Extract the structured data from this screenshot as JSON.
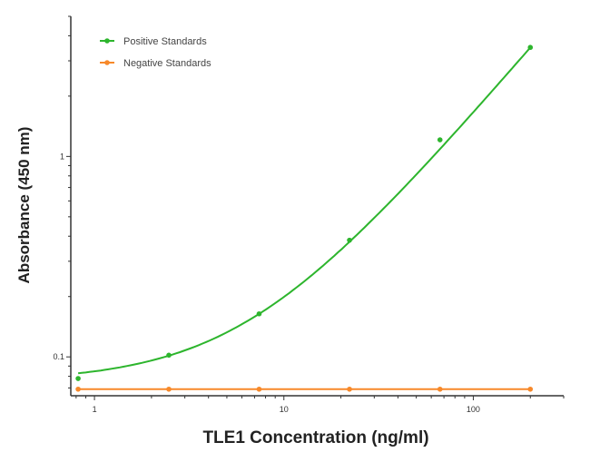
{
  "chart_data": {
    "type": "line",
    "title": "",
    "xlabel": "TLE1 Concentration (ng/ml)",
    "ylabel": "Absorbance (450 nm)",
    "x_scale": "log",
    "y_scale": "log",
    "xlim": [
      0.75,
      300
    ],
    "ylim": [
      0.064,
      5
    ],
    "x_ticks": [
      {
        "value": 1,
        "label": "1"
      },
      {
        "value": 10,
        "label": "10"
      },
      {
        "value": 100,
        "label": "100"
      }
    ],
    "y_ticks": [
      {
        "value": 0.1,
        "label": "0.1"
      },
      {
        "value": 1,
        "label": "1"
      }
    ],
    "grid": false,
    "legend_position": "top-left",
    "x": [
      0.82,
      2.47,
      7.4,
      22.2,
      66.7,
      200
    ],
    "series": [
      {
        "name": "Positive Standards",
        "color": "#2db52d",
        "values": [
          0.078,
          0.102,
          0.164,
          0.382,
          1.21,
          3.5
        ],
        "fit_curve": true
      },
      {
        "name": "Negative Standards",
        "color": "#f7892a",
        "values": [
          0.069,
          0.069,
          0.069,
          0.069,
          0.069,
          0.069
        ],
        "fit_curve": false
      }
    ]
  }
}
